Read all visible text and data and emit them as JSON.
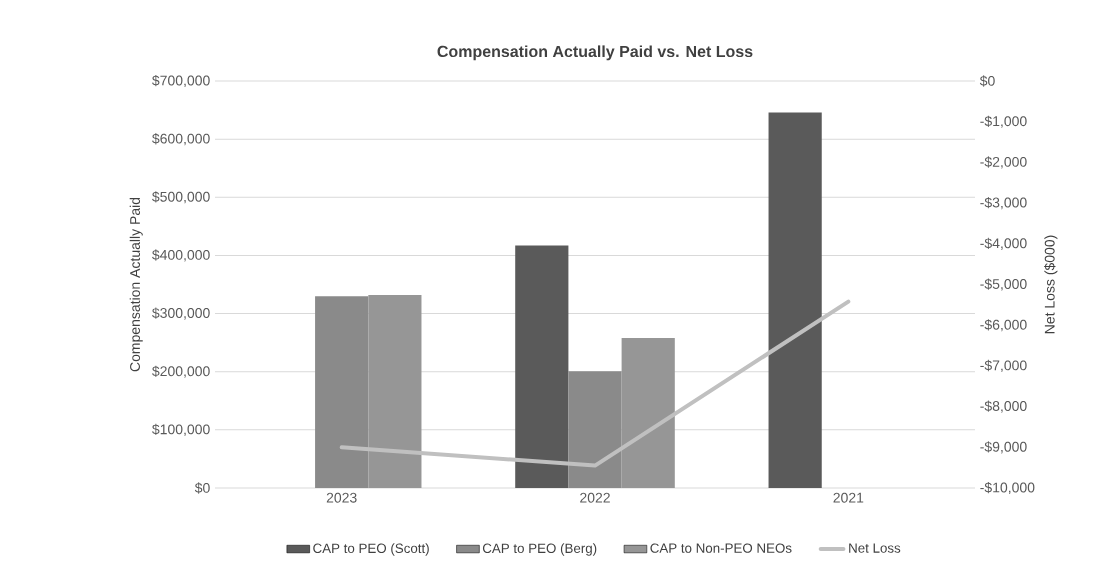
{
  "chart_data": {
    "type": "bar",
    "title": "Compensation Actually Paid vs. Net Loss",
    "ylabel": "Compensation Actually Paid",
    "y2label": "Net Loss ($000)",
    "categories": [
      "2023",
      "2022",
      "2021"
    ],
    "series": [
      {
        "name": "CAP to PEO (Scott)",
        "color": "#5a5a5a",
        "values": [
          null,
          417000,
          646000
        ]
      },
      {
        "name": "CAP to PEO (Berg)",
        "color": "#8a8a8a",
        "values": [
          330000,
          201000,
          null
        ]
      },
      {
        "name": "CAP to Non-PEO NEOs",
        "color": "#969696",
        "values": [
          332000,
          258000,
          null
        ]
      },
      {
        "name": "Net Loss",
        "type": "line",
        "axis": "y2",
        "color": "#c0c0c0",
        "values": [
          -9000,
          -9450,
          -5420
        ]
      }
    ],
    "ylim": [
      0,
      700000
    ],
    "yticks": [
      {
        "value": 0,
        "label": "$0"
      },
      {
        "value": 100000,
        "label": "$100,000"
      },
      {
        "value": 200000,
        "label": "$200,000"
      },
      {
        "value": 300000,
        "label": "$300,000"
      },
      {
        "value": 400000,
        "label": "$400,000"
      },
      {
        "value": 500000,
        "label": "$500,000"
      },
      {
        "value": 600000,
        "label": "$600,000"
      },
      {
        "value": 700000,
        "label": "$700,000"
      }
    ],
    "y2lim": [
      -10000,
      0
    ],
    "y2ticks": [
      {
        "value": -10000,
        "label": "-$10,000"
      },
      {
        "value": -9000,
        "label": "-$9,000"
      },
      {
        "value": -8000,
        "label": "-$8,000"
      },
      {
        "value": -7000,
        "label": "-$7,000"
      },
      {
        "value": -6000,
        "label": "-$6,000"
      },
      {
        "value": -5000,
        "label": "-$5,000"
      },
      {
        "value": -4000,
        "label": "-$4,000"
      },
      {
        "value": -3000,
        "label": "-$3,000"
      },
      {
        "value": -2000,
        "label": "-$2,000"
      },
      {
        "value": -1000,
        "label": "-$1,000"
      },
      {
        "value": 0,
        "label": "$0"
      }
    ],
    "grid": "y",
    "legend": "bottom"
  }
}
